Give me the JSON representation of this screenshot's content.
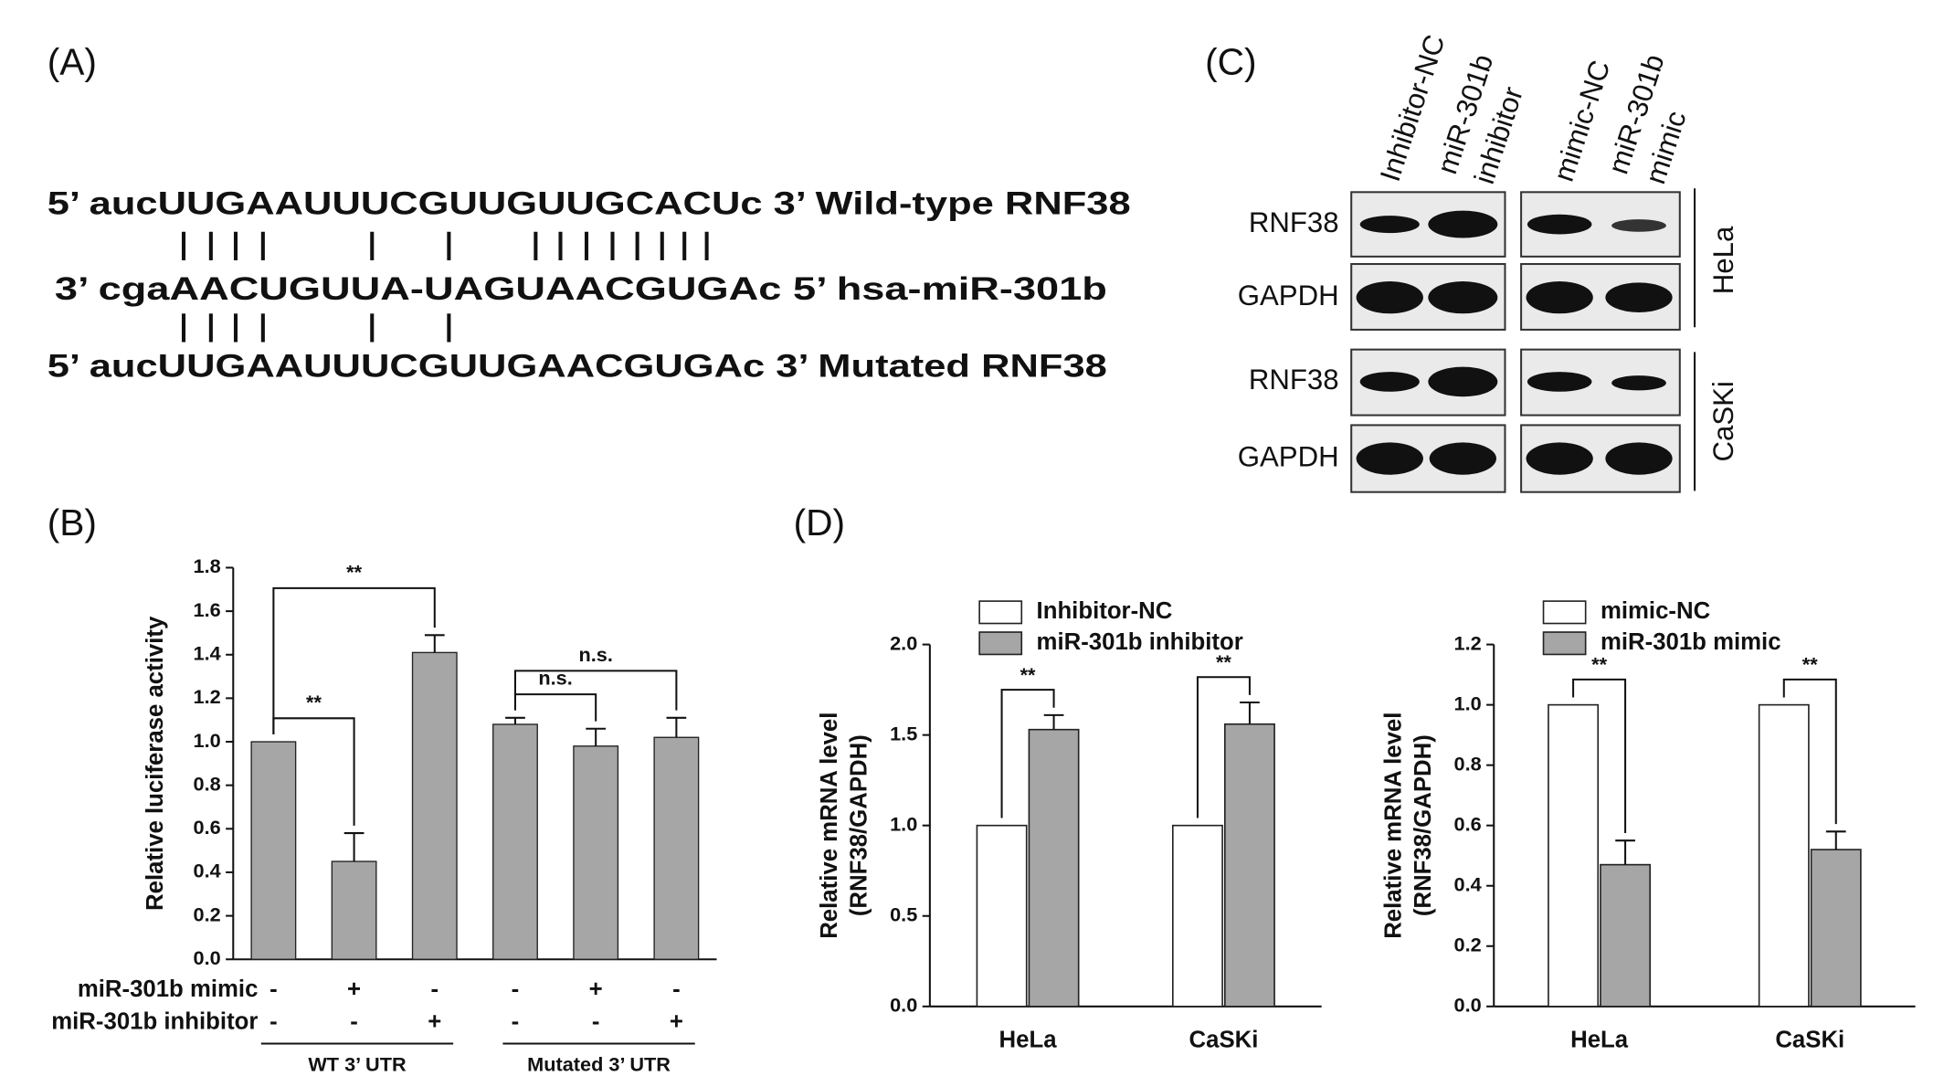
{
  "panel_labels": [
    "(A)",
    "(B)",
    "(C)",
    "(D)"
  ],
  "sequences": [
    "5’ aucUUGAAUUUCGUUGUUGCACUc 3’ Wild-type RNF38",
    "3’ cgaAACUGUUA-UAGUAACGUGAc 5’ hsa-miR-301b",
    "5’ aucUUGAAUUUCGUUGAACGUGAc 3’ Mutated RNF38"
  ],
  "blot": {
    "columns": [
      [
        "Inhibitor-NC"
      ],
      [
        "miR-301b",
        "inhibitor"
      ],
      [
        "mimic-NC"
      ],
      [
        "miR-301b",
        "mimic"
      ]
    ],
    "rows": [
      "RNF38",
      "GAPDH",
      "RNF38",
      "GAPDH"
    ],
    "cell_lines": [
      "HeLa",
      "CaSKi"
    ]
  },
  "chart_data": [
    {
      "type": "bar",
      "ylabel": [
        "Relative luciferase activity"
      ],
      "categories": [
        null,
        null,
        null,
        null,
        null,
        null
      ],
      "values": [
        1.0,
        0.45,
        1.41,
        1.08,
        0.98,
        1.02
      ],
      "errors": [
        0,
        0.13,
        0.08,
        0.03,
        0.08,
        0.09
      ],
      "color": "#a6a6a6",
      "ylim": [
        0,
        1.8
      ],
      "yticks": [
        {
          "value": 0,
          "label": "0.0"
        },
        {
          "value": 0.2,
          "label": "0.2"
        },
        {
          "value": 0.4,
          "label": "0.4"
        },
        {
          "value": 0.6,
          "label": "0.6"
        },
        {
          "value": 0.8,
          "label": "0.8"
        },
        {
          "value": 1.0,
          "label": "1.0"
        },
        {
          "value": 1.2,
          "label": "1.2"
        },
        {
          "value": 1.4,
          "label": "1.4"
        },
        {
          "value": 1.6,
          "label": "1.6"
        },
        {
          "value": 1.8,
          "label": "1.8"
        }
      ],
      "treatments": [
        {
          "name": "miR-301b mimic",
          "signs": [
            "-",
            "+",
            "-",
            "-",
            "+",
            "-"
          ]
        },
        {
          "name": "miR-301b inhibitor",
          "signs": [
            "-",
            "-",
            "+",
            "-",
            "-",
            "+"
          ]
        }
      ],
      "groups": [
        "WT 3’ UTR",
        "Mutated 3’ UTR"
      ],
      "annotations": [
        {
          "text": "**",
          "from": 0,
          "to": 1
        },
        {
          "text": "**",
          "from": 0,
          "to": 2
        },
        {
          "text": "n.s.",
          "from": 3,
          "to": 4
        },
        {
          "text": "n.s.",
          "from": 3,
          "to": 5
        }
      ]
    },
    {
      "type": "grouped_bar",
      "ylabel": [
        "Relative mRNA level",
        "(RNF38/GAPDH)"
      ],
      "categories": [
        "HeLa",
        "CaSKi"
      ],
      "series": [
        {
          "name": "Inhibitor-NC",
          "color": "#ffffff",
          "values": [
            1.0,
            1.0
          ],
          "errors": [
            0,
            0
          ]
        },
        {
          "name": "miR-301b inhibitor",
          "color": "#a6a6a6",
          "values": [
            1.53,
            1.56
          ],
          "errors": [
            0.08,
            0.12
          ]
        }
      ],
      "ylim": [
        0,
        2.0
      ],
      "yticks": [
        {
          "value": 0,
          "label": "0.0"
        },
        {
          "value": 0.5,
          "label": "0.5"
        },
        {
          "value": 1.0,
          "label": "1.0"
        },
        {
          "value": 1.5,
          "label": "1.5"
        },
        {
          "value": 2.0,
          "label": "2.0"
        }
      ],
      "legend": "top",
      "annotations": [
        {
          "text": "**",
          "category": 0
        },
        {
          "text": "**",
          "category": 1
        }
      ]
    },
    {
      "type": "grouped_bar",
      "ylabel": [
        "Relative mRNA level",
        "(RNF38/GAPDH)"
      ],
      "categories": [
        "HeLa",
        "CaSKi"
      ],
      "series": [
        {
          "name": "mimic-NC",
          "color": "#ffffff",
          "values": [
            1.0,
            1.0
          ],
          "errors": [
            0,
            0
          ]
        },
        {
          "name": "miR-301b mimic",
          "color": "#a6a6a6",
          "values": [
            0.47,
            0.52
          ],
          "errors": [
            0.08,
            0.06
          ]
        }
      ],
      "ylim": [
        0,
        1.2
      ],
      "yticks": [
        {
          "value": 0,
          "label": "0.0"
        },
        {
          "value": 0.2,
          "label": "0.2"
        },
        {
          "value": 0.4,
          "label": "0.4"
        },
        {
          "value": 0.6,
          "label": "0.6"
        },
        {
          "value": 0.8,
          "label": "0.8"
        },
        {
          "value": 1.0,
          "label": "1.0"
        },
        {
          "value": 1.2,
          "label": "1.2"
        }
      ],
      "legend": "top",
      "annotations": [
        {
          "text": "**",
          "category": 0
        },
        {
          "text": "**",
          "category": 1
        }
      ]
    }
  ]
}
